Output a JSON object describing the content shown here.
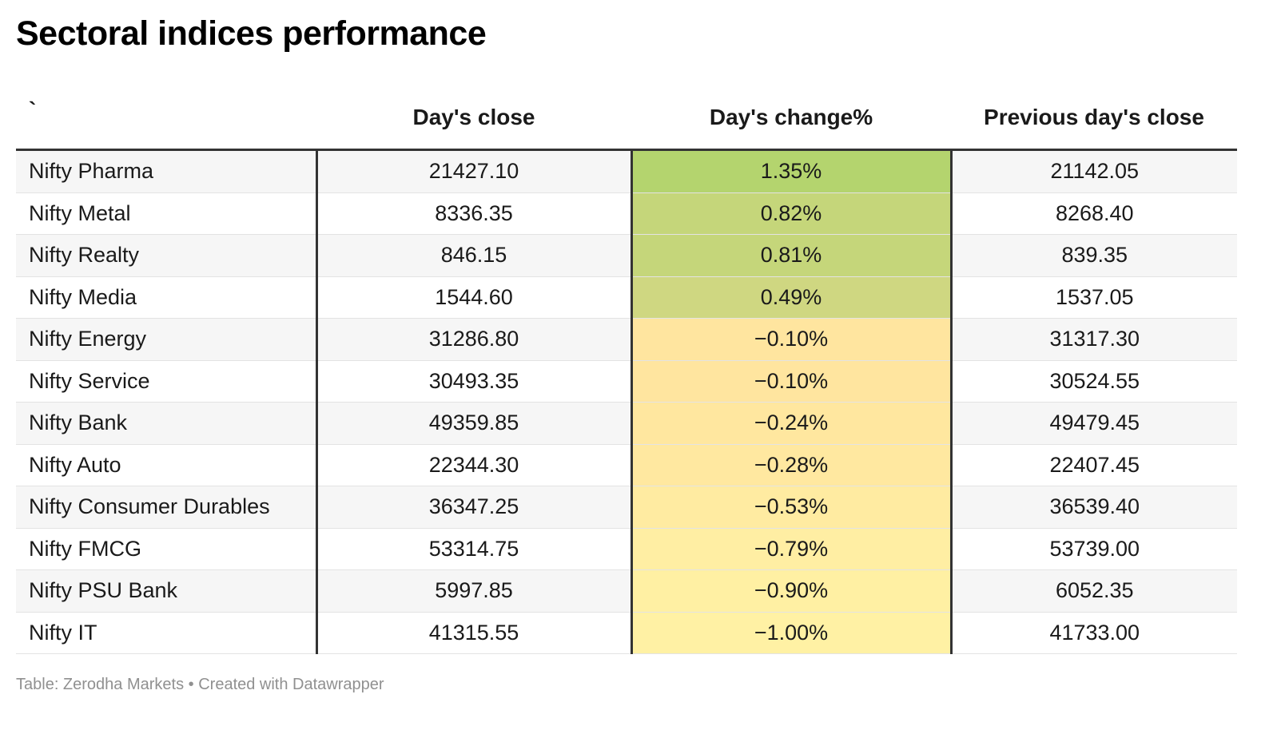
{
  "title": "Sectoral indices performance",
  "headers": {
    "name": "`",
    "close": "Day's close",
    "change": "Day's change%",
    "previous": "Previous day's close"
  },
  "colors": {
    "max_positive": "#b4d46e",
    "near_zero": "#ffe49e",
    "max_negative": "#fff1a4"
  },
  "chart_data": {
    "type": "table",
    "title": "Sectoral indices performance",
    "columns": [
      "`",
      "Day's close",
      "Day's change%",
      "Previous day's close"
    ],
    "rows": [
      {
        "name": "Nifty Pharma",
        "close": "21427.10",
        "change": "1.35%",
        "change_value": 1.35,
        "previous": "21142.05"
      },
      {
        "name": "Nifty Metal",
        "close": "8336.35",
        "change": "0.82%",
        "change_value": 0.82,
        "previous": "8268.40"
      },
      {
        "name": "Nifty Realty",
        "close": "846.15",
        "change": "0.81%",
        "change_value": 0.81,
        "previous": "839.35"
      },
      {
        "name": "Nifty Media",
        "close": "1544.60",
        "change": "0.49%",
        "change_value": 0.49,
        "previous": "1537.05"
      },
      {
        "name": "Nifty Energy",
        "close": "31286.80",
        "change": "−0.10%",
        "change_value": -0.1,
        "previous": "31317.30"
      },
      {
        "name": "Nifty Service",
        "close": "30493.35",
        "change": "−0.10%",
        "change_value": -0.1,
        "previous": "30524.55"
      },
      {
        "name": "Nifty Bank",
        "close": "49359.85",
        "change": "−0.24%",
        "change_value": -0.24,
        "previous": "49479.45"
      },
      {
        "name": "Nifty Auto",
        "close": "22344.30",
        "change": "−0.28%",
        "change_value": -0.28,
        "previous": "22407.45"
      },
      {
        "name": "Nifty Consumer Durables",
        "close": "36347.25",
        "change": "−0.53%",
        "change_value": -0.53,
        "previous": "36539.40"
      },
      {
        "name": "Nifty FMCG",
        "close": "53314.75",
        "change": "−0.79%",
        "change_value": -0.79,
        "previous": "53739.00"
      },
      {
        "name": "Nifty PSU Bank",
        "close": "5997.85",
        "change": "−0.90%",
        "change_value": -0.9,
        "previous": "6052.35"
      },
      {
        "name": "Nifty IT",
        "close": "41315.55",
        "change": "−1.00%",
        "change_value": -1.0,
        "previous": "41733.00"
      }
    ]
  },
  "footer": "Table: Zerodha Markets • Created with Datawrapper"
}
